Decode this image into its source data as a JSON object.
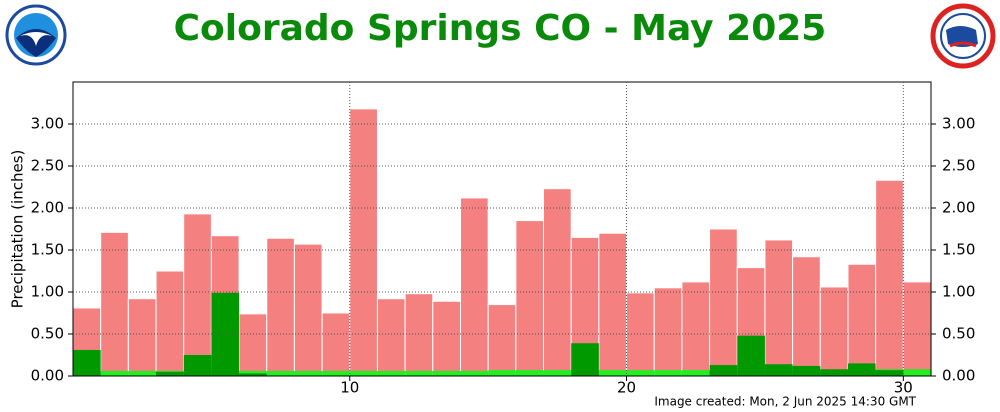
{
  "chart_data": {
    "type": "bar",
    "title": "Colorado Springs CO - May 2025",
    "y_label": "Precipitation (inches)",
    "footer": "Image created: Mon, 2 Jun 2025 14:30 GMT",
    "x": [
      1,
      2,
      3,
      4,
      5,
      6,
      7,
      8,
      9,
      10,
      11,
      12,
      13,
      14,
      15,
      16,
      17,
      18,
      19,
      20,
      21,
      22,
      23,
      24,
      25,
      26,
      27,
      28,
      29,
      30,
      31
    ],
    "xlim": [
      0,
      31
    ],
    "xticks": [
      10,
      20,
      30
    ],
    "ylim": [
      0,
      3.5
    ],
    "yticks": [
      {
        "value": 0,
        "label": "0.00"
      },
      {
        "value": 0.5,
        "label": "0.50"
      },
      {
        "value": 1,
        "label": "1.00"
      },
      {
        "value": 1.5,
        "label": "1.50"
      },
      {
        "value": 2,
        "label": "2.00"
      },
      {
        "value": 2.5,
        "label": "2.50"
      },
      {
        "value": 3,
        "label": "3.00"
      }
    ],
    "grid": true,
    "series": [
      {
        "color": "#f48080",
        "values": [
          0.81,
          1.71,
          0.92,
          1.25,
          1.93,
          1.67,
          0.74,
          1.64,
          1.57,
          0.75,
          3.18,
          0.92,
          0.98,
          0.89,
          2.12,
          0.85,
          1.85,
          2.23,
          1.65,
          1.7,
          0.99,
          1.05,
          1.12,
          1.75,
          1.29,
          1.62,
          1.42,
          1.06,
          1.33,
          2.33,
          1.12
        ]
      },
      {
        "color": "#22ee22",
        "values": [
          0.06,
          0.06,
          0.06,
          0.06,
          0.06,
          0.06,
          0.06,
          0.06,
          0.06,
          0.06,
          0.06,
          0.06,
          0.06,
          0.06,
          0.06,
          0.07,
          0.07,
          0.07,
          0.07,
          0.07,
          0.07,
          0.07,
          0.07,
          0.07,
          0.07,
          0.07,
          0.07,
          0.07,
          0.08,
          0.08,
          0.08
        ]
      },
      {
        "color": "#009900",
        "values": [
          0.31,
          0,
          0,
          0.05,
          0.25,
          0.99,
          0.03,
          0,
          0,
          0,
          0,
          0,
          0,
          0,
          0,
          0,
          0,
          0,
          0.39,
          0,
          0,
          0,
          0,
          0.13,
          0.48,
          0.14,
          0.12,
          0.08,
          0.15,
          0.07,
          0
        ]
      }
    ]
  }
}
